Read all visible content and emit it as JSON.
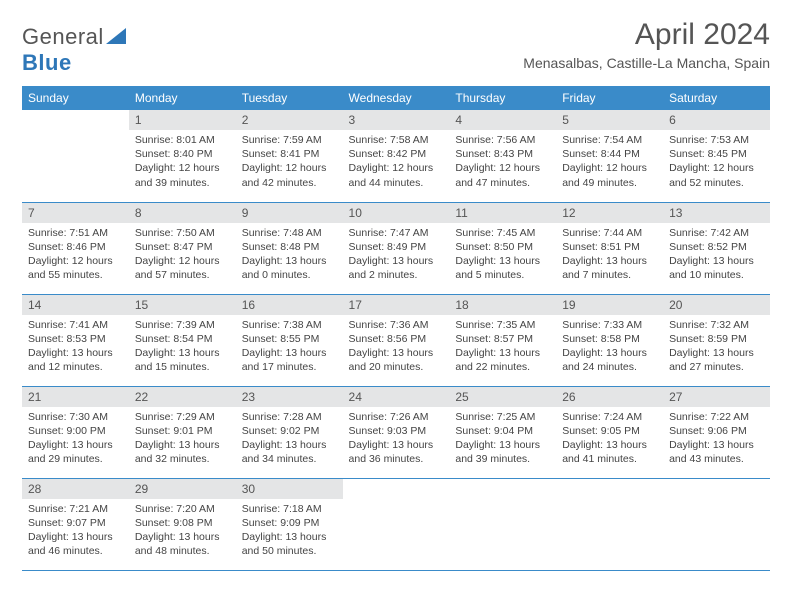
{
  "brand": {
    "part1": "General",
    "part2": "Blue"
  },
  "title": "April 2024",
  "location": "Menasalbas, Castille-La Mancha, Spain",
  "colors": {
    "header_bg": "#3a8bc9",
    "header_text": "#ffffff",
    "daynum_bg": "#e4e5e6",
    "border": "#3a8bc9",
    "text": "#444444",
    "title_color": "#555555"
  },
  "weekdays": [
    "Sunday",
    "Monday",
    "Tuesday",
    "Wednesday",
    "Thursday",
    "Friday",
    "Saturday"
  ],
  "weeks": [
    [
      {
        "n": "",
        "sr": "",
        "ss": "",
        "dl1": "",
        "dl2": "",
        "empty": true
      },
      {
        "n": "1",
        "sr": "Sunrise: 8:01 AM",
        "ss": "Sunset: 8:40 PM",
        "dl1": "Daylight: 12 hours",
        "dl2": "and 39 minutes."
      },
      {
        "n": "2",
        "sr": "Sunrise: 7:59 AM",
        "ss": "Sunset: 8:41 PM",
        "dl1": "Daylight: 12 hours",
        "dl2": "and 42 minutes."
      },
      {
        "n": "3",
        "sr": "Sunrise: 7:58 AM",
        "ss": "Sunset: 8:42 PM",
        "dl1": "Daylight: 12 hours",
        "dl2": "and 44 minutes."
      },
      {
        "n": "4",
        "sr": "Sunrise: 7:56 AM",
        "ss": "Sunset: 8:43 PM",
        "dl1": "Daylight: 12 hours",
        "dl2": "and 47 minutes."
      },
      {
        "n": "5",
        "sr": "Sunrise: 7:54 AM",
        "ss": "Sunset: 8:44 PM",
        "dl1": "Daylight: 12 hours",
        "dl2": "and 49 minutes."
      },
      {
        "n": "6",
        "sr": "Sunrise: 7:53 AM",
        "ss": "Sunset: 8:45 PM",
        "dl1": "Daylight: 12 hours",
        "dl2": "and 52 minutes."
      }
    ],
    [
      {
        "n": "7",
        "sr": "Sunrise: 7:51 AM",
        "ss": "Sunset: 8:46 PM",
        "dl1": "Daylight: 12 hours",
        "dl2": "and 55 minutes."
      },
      {
        "n": "8",
        "sr": "Sunrise: 7:50 AM",
        "ss": "Sunset: 8:47 PM",
        "dl1": "Daylight: 12 hours",
        "dl2": "and 57 minutes."
      },
      {
        "n": "9",
        "sr": "Sunrise: 7:48 AM",
        "ss": "Sunset: 8:48 PM",
        "dl1": "Daylight: 13 hours",
        "dl2": "and 0 minutes."
      },
      {
        "n": "10",
        "sr": "Sunrise: 7:47 AM",
        "ss": "Sunset: 8:49 PM",
        "dl1": "Daylight: 13 hours",
        "dl2": "and 2 minutes."
      },
      {
        "n": "11",
        "sr": "Sunrise: 7:45 AM",
        "ss": "Sunset: 8:50 PM",
        "dl1": "Daylight: 13 hours",
        "dl2": "and 5 minutes."
      },
      {
        "n": "12",
        "sr": "Sunrise: 7:44 AM",
        "ss": "Sunset: 8:51 PM",
        "dl1": "Daylight: 13 hours",
        "dl2": "and 7 minutes."
      },
      {
        "n": "13",
        "sr": "Sunrise: 7:42 AM",
        "ss": "Sunset: 8:52 PM",
        "dl1": "Daylight: 13 hours",
        "dl2": "and 10 minutes."
      }
    ],
    [
      {
        "n": "14",
        "sr": "Sunrise: 7:41 AM",
        "ss": "Sunset: 8:53 PM",
        "dl1": "Daylight: 13 hours",
        "dl2": "and 12 minutes."
      },
      {
        "n": "15",
        "sr": "Sunrise: 7:39 AM",
        "ss": "Sunset: 8:54 PM",
        "dl1": "Daylight: 13 hours",
        "dl2": "and 15 minutes."
      },
      {
        "n": "16",
        "sr": "Sunrise: 7:38 AM",
        "ss": "Sunset: 8:55 PM",
        "dl1": "Daylight: 13 hours",
        "dl2": "and 17 minutes."
      },
      {
        "n": "17",
        "sr": "Sunrise: 7:36 AM",
        "ss": "Sunset: 8:56 PM",
        "dl1": "Daylight: 13 hours",
        "dl2": "and 20 minutes."
      },
      {
        "n": "18",
        "sr": "Sunrise: 7:35 AM",
        "ss": "Sunset: 8:57 PM",
        "dl1": "Daylight: 13 hours",
        "dl2": "and 22 minutes."
      },
      {
        "n": "19",
        "sr": "Sunrise: 7:33 AM",
        "ss": "Sunset: 8:58 PM",
        "dl1": "Daylight: 13 hours",
        "dl2": "and 24 minutes."
      },
      {
        "n": "20",
        "sr": "Sunrise: 7:32 AM",
        "ss": "Sunset: 8:59 PM",
        "dl1": "Daylight: 13 hours",
        "dl2": "and 27 minutes."
      }
    ],
    [
      {
        "n": "21",
        "sr": "Sunrise: 7:30 AM",
        "ss": "Sunset: 9:00 PM",
        "dl1": "Daylight: 13 hours",
        "dl2": "and 29 minutes."
      },
      {
        "n": "22",
        "sr": "Sunrise: 7:29 AM",
        "ss": "Sunset: 9:01 PM",
        "dl1": "Daylight: 13 hours",
        "dl2": "and 32 minutes."
      },
      {
        "n": "23",
        "sr": "Sunrise: 7:28 AM",
        "ss": "Sunset: 9:02 PM",
        "dl1": "Daylight: 13 hours",
        "dl2": "and 34 minutes."
      },
      {
        "n": "24",
        "sr": "Sunrise: 7:26 AM",
        "ss": "Sunset: 9:03 PM",
        "dl1": "Daylight: 13 hours",
        "dl2": "and 36 minutes."
      },
      {
        "n": "25",
        "sr": "Sunrise: 7:25 AM",
        "ss": "Sunset: 9:04 PM",
        "dl1": "Daylight: 13 hours",
        "dl2": "and 39 minutes."
      },
      {
        "n": "26",
        "sr": "Sunrise: 7:24 AM",
        "ss": "Sunset: 9:05 PM",
        "dl1": "Daylight: 13 hours",
        "dl2": "and 41 minutes."
      },
      {
        "n": "27",
        "sr": "Sunrise: 7:22 AM",
        "ss": "Sunset: 9:06 PM",
        "dl1": "Daylight: 13 hours",
        "dl2": "and 43 minutes."
      }
    ],
    [
      {
        "n": "28",
        "sr": "Sunrise: 7:21 AM",
        "ss": "Sunset: 9:07 PM",
        "dl1": "Daylight: 13 hours",
        "dl2": "and 46 minutes."
      },
      {
        "n": "29",
        "sr": "Sunrise: 7:20 AM",
        "ss": "Sunset: 9:08 PM",
        "dl1": "Daylight: 13 hours",
        "dl2": "and 48 minutes."
      },
      {
        "n": "30",
        "sr": "Sunrise: 7:18 AM",
        "ss": "Sunset: 9:09 PM",
        "dl1": "Daylight: 13 hours",
        "dl2": "and 50 minutes."
      },
      {
        "n": "",
        "sr": "",
        "ss": "",
        "dl1": "",
        "dl2": "",
        "empty": true
      },
      {
        "n": "",
        "sr": "",
        "ss": "",
        "dl1": "",
        "dl2": "",
        "empty": true
      },
      {
        "n": "",
        "sr": "",
        "ss": "",
        "dl1": "",
        "dl2": "",
        "empty": true
      },
      {
        "n": "",
        "sr": "",
        "ss": "",
        "dl1": "",
        "dl2": "",
        "empty": true
      }
    ]
  ]
}
